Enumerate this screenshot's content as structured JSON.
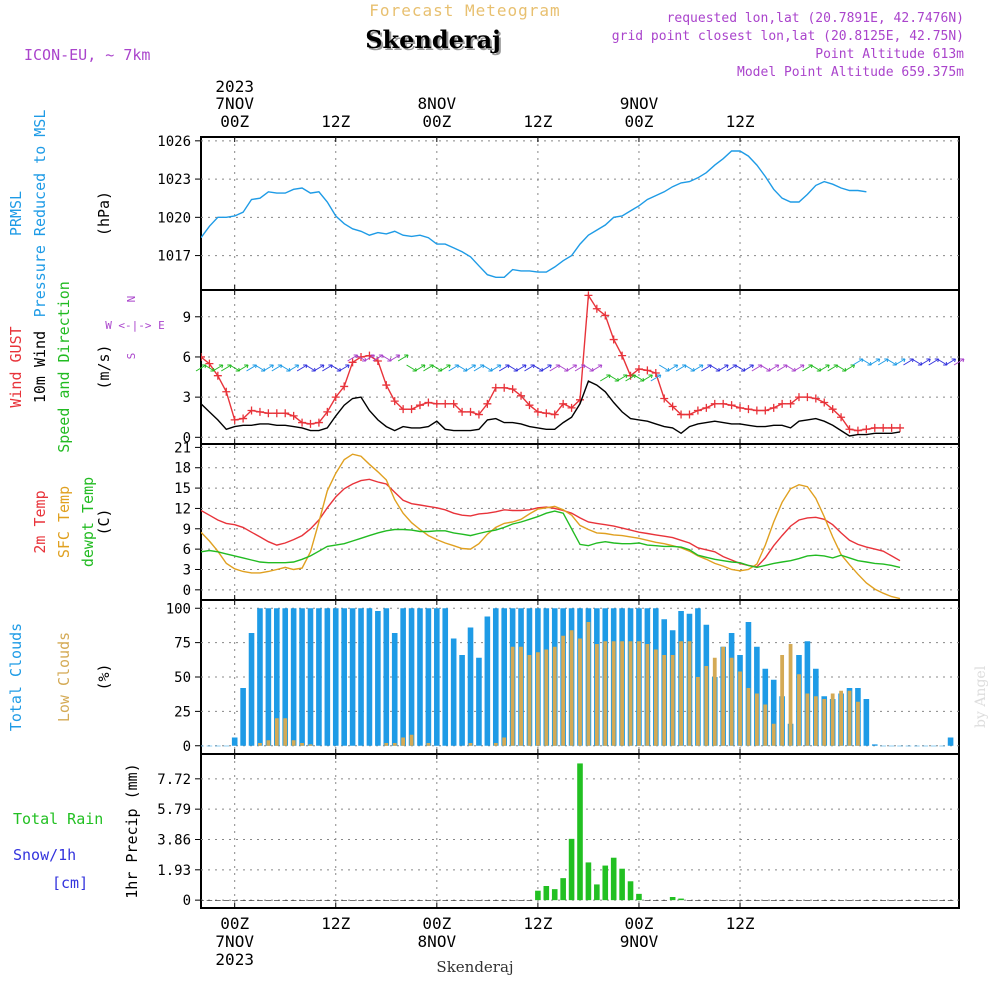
{
  "header": {
    "brand": "Forecast Meteogram",
    "location": "Skenderaj",
    "model": "ICON-EU, ~ 7km",
    "requested": "requested lon,lat (20.7891E, 42.7476N)",
    "grid_point": "grid point closest lon,lat (20.8125E, 42.75N)",
    "point_altitude": "Point Altitude 613m",
    "model_altitude": "Model Point Altitude 659.375m"
  },
  "footer": {
    "location": "Skenderaj",
    "credit": "by Angel"
  },
  "colors": {
    "pressure": "#1e9be6",
    "gust": "#e8333a",
    "wind": "#000000",
    "temp2m": "#e8333a",
    "sfc": "#e0a020",
    "dewpt": "#22bb22",
    "total_clouds": "#1e9be6",
    "low_clouds": "#d4aa55",
    "rain": "#22c022",
    "snow": "#3333dd",
    "purple": "#aa44cc",
    "frame": "#000000"
  },
  "time_axis": {
    "top_year": "2023",
    "ticks": [
      "7NOV\n00Z",
      "12Z",
      "8NOV\n00Z",
      "12Z",
      "9NOV\n00Z",
      "12Z"
    ],
    "bottom_ticks": [
      "00Z",
      "12Z",
      "00Z",
      "12Z",
      "00Z",
      "12Z"
    ],
    "bottom_days": [
      "7NOV",
      "",
      "8NOV",
      "",
      "9NOV",
      ""
    ],
    "bottom_year": "2023"
  },
  "chart_data": [
    {
      "type": "line",
      "panel": "pressure",
      "left_labels": [
        "PRMSL",
        "Pressure Reduced to MSL"
      ],
      "ylabel": "(hPa)",
      "yticks": [
        1017,
        1020,
        1023,
        1026
      ],
      "ylim": [
        1014.3,
        1026.3
      ],
      "x_hours_start": -4,
      "x_step_hours": 1,
      "series": [
        {
          "values": [
            1018.4,
            1019.3,
            1020.0,
            1020.0,
            1020.1,
            1020.4,
            1021.4,
            1021.5,
            1022.0,
            1021.9,
            1021.9,
            1022.2,
            1022.3,
            1021.9,
            1022.0,
            1021.2,
            1020.1,
            1019.5,
            1019.1,
            1018.9,
            1018.6,
            1018.8,
            1018.7,
            1018.9,
            1018.6,
            1018.5,
            1018.6,
            1018.4,
            1017.9,
            1017.9,
            1017.6,
            1017.3,
            1016.9,
            1016.2,
            1015.5,
            1015.3,
            1015.3,
            1015.9,
            1015.8,
            1015.8,
            1015.7,
            1015.7,
            1016.1,
            1016.6,
            1017.0,
            1017.9,
            1018.6,
            1019.0,
            1019.4,
            1020.0,
            1020.1,
            1020.5,
            1020.9,
            1021.4,
            1021.7,
            1022.0,
            1022.4,
            1022.7,
            1022.8,
            1023.1,
            1023.5,
            1024.1,
            1024.6,
            1025.2,
            1025.2,
            1024.8,
            1024.1,
            1023.2,
            1022.2,
            1021.5,
            1021.2,
            1021.2,
            1021.8,
            1022.5,
            1022.8,
            1022.6,
            1022.3,
            1022.1,
            1022.1,
            1022.0
          ]
        }
      ]
    },
    {
      "type": "line",
      "panel": "wind",
      "left_labels": [
        "Wind GUST",
        "10m Wind",
        "Speed and Direction"
      ],
      "ylabel": "(m/s)",
      "compass": [
        "N",
        "W <-|-> E",
        "S"
      ],
      "yticks": [
        0,
        3,
        6,
        9
      ],
      "ylim": [
        -0.5,
        11
      ],
      "x_hours_start": -4,
      "x_step_hours": 1,
      "series": [
        {
          "name": "Wind GUST",
          "values": [
            6.0,
            5.5,
            4.6,
            3.4,
            1.3,
            1.4,
            2.0,
            1.9,
            1.8,
            1.8,
            1.8,
            1.6,
            1.1,
            1.0,
            1.1,
            1.9,
            3.0,
            3.8,
            5.6,
            6.0,
            6.1,
            5.7,
            3.9,
            2.7,
            2.1,
            2.1,
            2.4,
            2.6,
            2.5,
            2.5,
            2.5,
            1.9,
            1.9,
            1.7,
            2.5,
            3.7,
            3.7,
            3.6,
            3.1,
            2.4,
            1.9,
            1.8,
            1.7,
            2.5,
            2.2,
            2.8,
            10.6,
            9.6,
            9.1,
            7.3,
            6.1,
            4.6,
            5.1,
            5.0,
            4.8,
            2.9,
            2.3,
            1.7,
            1.7,
            2.0,
            2.2,
            2.5,
            2.5,
            2.4,
            2.2,
            2.1,
            2.0,
            2.0,
            2.2,
            2.5,
            2.5,
            3.0,
            3.0,
            2.9,
            2.6,
            2.1,
            1.5,
            0.6,
            0.5,
            0.6,
            0.7,
            0.7,
            0.7,
            0.7
          ]
        },
        {
          "name": "10m Wind",
          "values": [
            2.5,
            1.9,
            1.3,
            0.6,
            0.8,
            0.9,
            0.9,
            1.0,
            1.0,
            0.9,
            0.9,
            0.8,
            0.7,
            0.5,
            0.5,
            0.7,
            1.6,
            2.4,
            2.9,
            3.0,
            2.0,
            1.3,
            0.8,
            0.5,
            0.8,
            0.7,
            0.7,
            0.8,
            1.2,
            0.6,
            0.5,
            0.5,
            0.5,
            0.6,
            1.3,
            1.4,
            1.1,
            1.1,
            1.0,
            0.8,
            0.7,
            0.6,
            0.6,
            1.1,
            1.5,
            2.5,
            4.2,
            3.9,
            3.4,
            2.6,
            1.9,
            1.4,
            1.3,
            1.2,
            1.0,
            0.8,
            0.7,
            0.3,
            0.8,
            1.0,
            1.1,
            1.2,
            1.1,
            1.0,
            1.0,
            0.9,
            0.8,
            0.8,
            0.9,
            0.9,
            0.7,
            1.2,
            1.3,
            1.4,
            1.2,
            0.9,
            0.5,
            0.1,
            0.2,
            0.2,
            0.3,
            0.3,
            0.3,
            0.4
          ]
        }
      ]
    },
    {
      "type": "line",
      "panel": "temperature",
      "left_labels": [
        "2m Temp",
        "SFC Temp",
        "dewpt Temp"
      ],
      "ylabel": "(C)",
      "yticks": [
        0,
        3,
        6,
        9,
        12,
        15,
        18,
        21
      ],
      "ylim": [
        -1.5,
        21.5
      ],
      "x_hours_start": -4,
      "x_step_hours": 1,
      "series": [
        {
          "name": "2m Temp",
          "values": [
            11.7,
            11.0,
            10.3,
            9.8,
            9.6,
            9.2,
            8.5,
            7.8,
            7.1,
            6.6,
            6.9,
            7.4,
            8.0,
            9.0,
            10.3,
            12.1,
            13.7,
            14.9,
            15.6,
            16.1,
            16.3,
            15.9,
            15.6,
            14.4,
            13.2,
            12.7,
            12.5,
            12.3,
            12.1,
            11.8,
            11.3,
            11.0,
            10.9,
            11.2,
            11.3,
            11.5,
            11.8,
            11.7,
            11.7,
            11.8,
            12.1,
            12.2,
            12.0,
            11.7,
            11.3,
            10.6,
            10.0,
            9.8,
            9.6,
            9.4,
            9.1,
            8.8,
            8.5,
            8.3,
            8.1,
            7.9,
            7.7,
            7.3,
            6.9,
            6.2,
            5.9,
            5.6,
            4.9,
            4.4,
            3.9,
            3.6,
            3.4,
            4.7,
            6.5,
            8.0,
            9.4,
            10.3,
            10.6,
            10.7,
            10.4,
            9.6,
            8.4,
            7.3,
            6.7,
            6.3,
            6.0,
            5.7,
            5.0,
            4.3
          ]
        },
        {
          "name": "SFC Temp",
          "values": [
            8.5,
            7.2,
            5.7,
            3.9,
            3.1,
            2.7,
            2.5,
            2.5,
            2.7,
            3.0,
            3.3,
            3.0,
            3.2,
            5.6,
            10.0,
            14.6,
            17.2,
            19.2,
            20.0,
            19.7,
            18.5,
            17.4,
            16.2,
            13.3,
            11.3,
            9.9,
            8.9,
            8.0,
            7.4,
            6.9,
            6.5,
            6.1,
            6.0,
            6.8,
            8.2,
            9.2,
            9.8,
            10.0,
            10.4,
            11.2,
            11.9,
            12.1,
            12.3,
            11.8,
            11.0,
            9.5,
            8.9,
            8.4,
            8.3,
            8.1,
            8.0,
            7.8,
            7.6,
            7.3,
            7.0,
            6.8,
            6.5,
            6.2,
            5.7,
            5.0,
            4.5,
            3.9,
            3.5,
            3.0,
            2.8,
            3.0,
            3.8,
            6.6,
            10.0,
            12.9,
            14.9,
            15.5,
            15.2,
            13.5,
            10.8,
            7.8,
            5.2,
            3.7,
            2.3,
            1.0,
            0.1,
            -0.5,
            -1.0,
            -1.3
          ]
        },
        {
          "name": "dewpt Temp",
          "values": [
            5.6,
            5.8,
            5.6,
            5.3,
            5.0,
            4.7,
            4.4,
            4.1,
            4.0,
            4.0,
            4.0,
            4.1,
            4.5,
            5.0,
            5.7,
            6.4,
            6.6,
            6.8,
            7.2,
            7.6,
            8.0,
            8.4,
            8.7,
            8.9,
            8.9,
            8.8,
            8.6,
            8.6,
            8.7,
            8.7,
            8.4,
            8.2,
            8.0,
            8.3,
            8.6,
            8.8,
            9.2,
            9.7,
            10.0,
            10.4,
            10.8,
            11.3,
            11.6,
            11.3,
            9.0,
            6.7,
            6.5,
            6.9,
            7.1,
            6.9,
            6.8,
            6.8,
            6.9,
            6.6,
            6.5,
            6.4,
            6.4,
            6.3,
            5.9,
            5.1,
            4.8,
            4.5,
            4.3,
            4.1,
            4.0,
            3.6,
            3.3,
            3.6,
            3.9,
            4.1,
            4.3,
            4.6,
            5.0,
            5.1,
            5.0,
            4.7,
            5.1,
            4.7,
            4.3,
            4.1,
            3.9,
            3.8,
            3.6,
            3.3
          ]
        }
      ]
    },
    {
      "type": "bar",
      "panel": "clouds",
      "left_labels": [
        "Total Clouds",
        "Low Clouds"
      ],
      "ylabel": "(%)",
      "yticks": [
        0,
        25,
        50,
        75,
        100
      ],
      "ylim": [
        -6,
        106
      ],
      "x_hours_start": -4,
      "x_step_hours": 1,
      "series": [
        {
          "name": "Total Clouds",
          "values": [
            0,
            0,
            0,
            0,
            6,
            42,
            82,
            100,
            100,
            100,
            100,
            100,
            100,
            100,
            100,
            100,
            100,
            100,
            100,
            100,
            100,
            98,
            100,
            82,
            100,
            100,
            100,
            100,
            100,
            100,
            78,
            66,
            86,
            64,
            94,
            100,
            100,
            100,
            100,
            100,
            100,
            100,
            100,
            100,
            100,
            100,
            100,
            100,
            100,
            100,
            100,
            100,
            100,
            100,
            100,
            92,
            84,
            98,
            96,
            100,
            88,
            50,
            72,
            82,
            66,
            90,
            72,
            56,
            48,
            36,
            16,
            66,
            76,
            56,
            36,
            34,
            38,
            42,
            42,
            34,
            1,
            0,
            0,
            0,
            0,
            0,
            0,
            0,
            0,
            6
          ]
        },
        {
          "name": "Low Clouds",
          "values": [
            0,
            0,
            0,
            0,
            0,
            0,
            0,
            2,
            4,
            20,
            20,
            4,
            2,
            1,
            0,
            0,
            0,
            0,
            0,
            0,
            0,
            0,
            2,
            2,
            6,
            8,
            0,
            2,
            0,
            0,
            0,
            0,
            2,
            0,
            0,
            2,
            6,
            72,
            72,
            66,
            68,
            70,
            72,
            80,
            84,
            78,
            90,
            74,
            76,
            76,
            76,
            76,
            76,
            74,
            70,
            66,
            66,
            76,
            76,
            50,
            58,
            64,
            72,
            64,
            54,
            42,
            38,
            30,
            16,
            66,
            74,
            52,
            38,
            36,
            34,
            38,
            40,
            40,
            32,
            0,
            0,
            0,
            0,
            0,
            0,
            0,
            0,
            0,
            0,
            0
          ]
        }
      ]
    },
    {
      "type": "bar",
      "panel": "precip",
      "left_labels": [
        "Total  Rain",
        "Snow/1h",
        "[cm]"
      ],
      "ylabel": "1hr Precip (mm)",
      "yticks": [
        0,
        1.93,
        3.86,
        5.79,
        7.72
      ],
      "ylim": [
        -0.5,
        9.3
      ],
      "x_hours_start": -4,
      "x_step_hours": 1,
      "series": [
        {
          "name": "Total Rain",
          "values": [
            0,
            0,
            0,
            0,
            0,
            0,
            0,
            0,
            0,
            0,
            0,
            0,
            0,
            0,
            0,
            0,
            0,
            0,
            0,
            0,
            0,
            0,
            0,
            0,
            0,
            0,
            0,
            0,
            0,
            0,
            0,
            0,
            0,
            0,
            0,
            0,
            0,
            0,
            0,
            0,
            0.6,
            0.9,
            0.7,
            1.4,
            3.9,
            8.7,
            2.4,
            1.0,
            2.2,
            2.7,
            2.0,
            1.2,
            0.4,
            0,
            0,
            0,
            0.2,
            0.1,
            0,
            0,
            0,
            0,
            0,
            0,
            0,
            0,
            0,
            0,
            0,
            0,
            0,
            0,
            0,
            0,
            0,
            0,
            0,
            0,
            0,
            0,
            0,
            0,
            0,
            0,
            0,
            0,
            0,
            0,
            0,
            0
          ]
        }
      ]
    }
  ]
}
